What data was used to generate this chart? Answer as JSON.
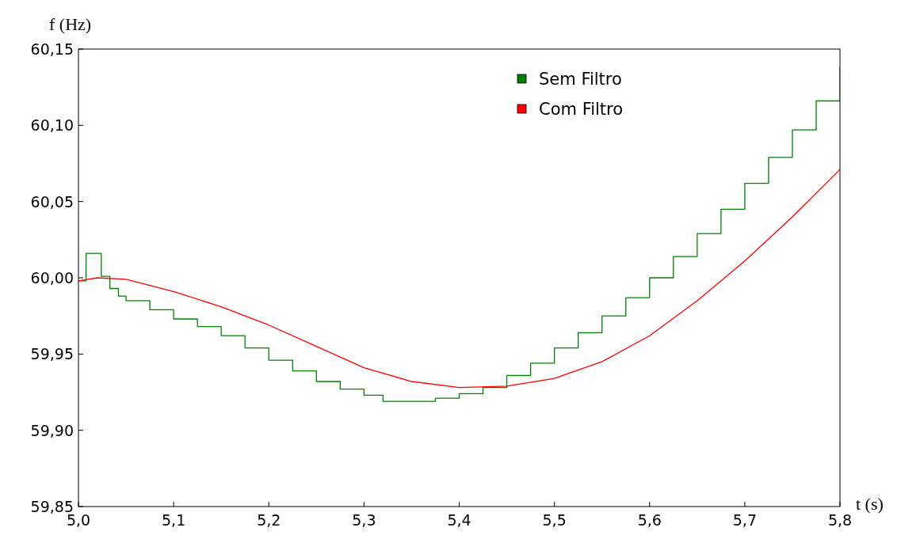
{
  "chart_data": {
    "type": "line",
    "xlabel": "t (s)",
    "ylabel": "f (Hz)",
    "xlim": [
      5.0,
      5.8
    ],
    "ylim": [
      59.85,
      60.15
    ],
    "xticks": [
      {
        "value": 5.0,
        "label": "5,0"
      },
      {
        "value": 5.1,
        "label": "5,1"
      },
      {
        "value": 5.2,
        "label": "5,2"
      },
      {
        "value": 5.3,
        "label": "5,3"
      },
      {
        "value": 5.4,
        "label": "5,4"
      },
      {
        "value": 5.5,
        "label": "5,5"
      },
      {
        "value": 5.6,
        "label": "5,6"
      },
      {
        "value": 5.7,
        "label": "5,7"
      },
      {
        "value": 5.8,
        "label": "5,8"
      }
    ],
    "yticks": [
      {
        "value": 59.85,
        "label": "59,85"
      },
      {
        "value": 59.9,
        "label": "59,90"
      },
      {
        "value": 59.95,
        "label": "59,95"
      },
      {
        "value": 60.0,
        "label": "60,00"
      },
      {
        "value": 60.05,
        "label": "60,05"
      },
      {
        "value": 60.1,
        "label": "60,10"
      },
      {
        "value": 60.15,
        "label": "60,15"
      }
    ],
    "grid": false,
    "legend": "top right",
    "marker": "none",
    "line_style": "solid",
    "series": [
      {
        "name": "Sem Filtro",
        "type": "step",
        "color": "#008000",
        "x": [
          5.0,
          5.008,
          5.024,
          5.033,
          5.042,
          5.05,
          5.075,
          5.1,
          5.125,
          5.15,
          5.175,
          5.2,
          5.225,
          5.25,
          5.275,
          5.3,
          5.32,
          5.36,
          5.375,
          5.4,
          5.425,
          5.45,
          5.475,
          5.5,
          5.525,
          5.55,
          5.575,
          5.6,
          5.625,
          5.65,
          5.675,
          5.7,
          5.725,
          5.75,
          5.775,
          5.8
        ],
        "values": [
          59.998,
          60.016,
          60.001,
          59.993,
          59.988,
          59.985,
          59.979,
          59.973,
          59.968,
          59.962,
          59.954,
          59.946,
          59.939,
          59.932,
          59.927,
          59.923,
          59.919,
          59.919,
          59.921,
          59.924,
          59.928,
          59.936,
          59.944,
          59.954,
          59.964,
          59.975,
          59.987,
          60.0,
          60.014,
          60.029,
          60.045,
          60.062,
          60.079,
          60.097,
          60.116,
          60.138
        ]
      },
      {
        "name": "Com Filtro",
        "color": "#ff0000",
        "x": [
          5.0,
          5.02,
          5.05,
          5.1,
          5.15,
          5.2,
          5.25,
          5.3,
          5.35,
          5.4,
          5.45,
          5.5,
          5.55,
          5.6,
          5.65,
          5.7,
          5.75,
          5.8
        ],
        "values": [
          59.998,
          60.0,
          59.999,
          59.991,
          59.981,
          59.969,
          59.955,
          59.941,
          59.932,
          59.928,
          59.929,
          59.934,
          59.945,
          59.962,
          59.985,
          60.011,
          60.04,
          60.071
        ]
      }
    ]
  }
}
